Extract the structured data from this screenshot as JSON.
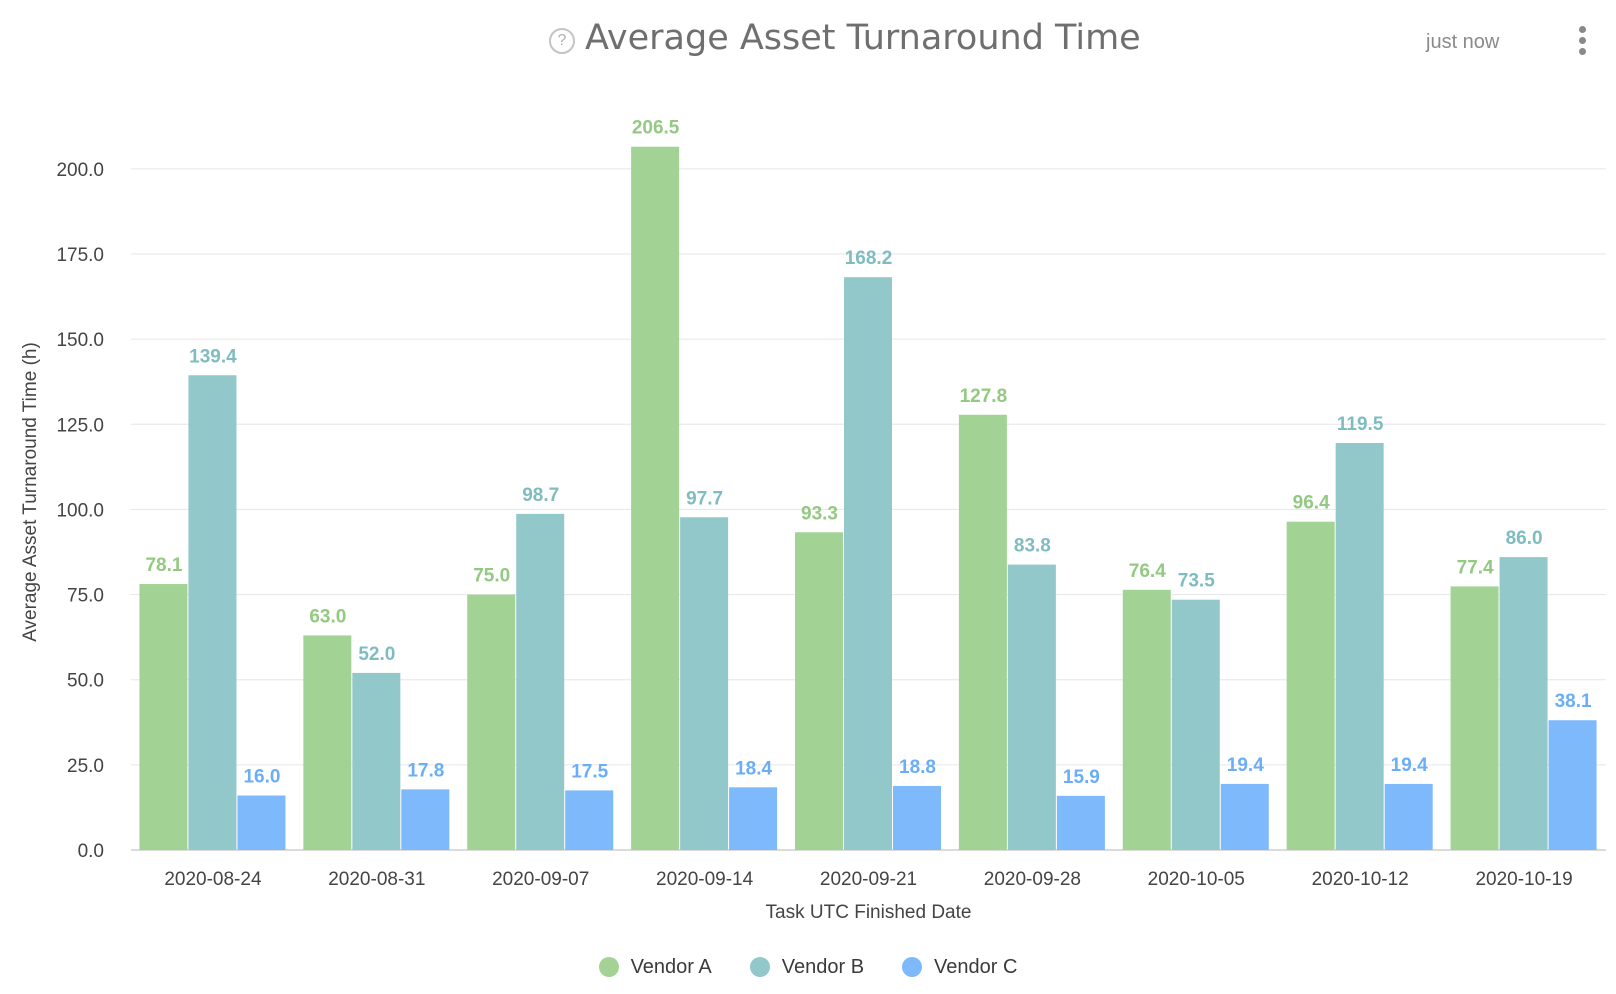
{
  "header": {
    "title": "Average Asset Turnaround Time",
    "help_icon": "?",
    "updated": "just now",
    "menu_icon": "more-vertical-icon"
  },
  "colors": {
    "grid": "#e6e6e6",
    "axis_text": "#444444",
    "axis_title": "#444444"
  },
  "chart_data": {
    "type": "bar",
    "title": "Average Asset Turnaround Time",
    "xlabel": "Task UTC Finished Date",
    "ylabel": "Average Asset Turnaround Time (h)",
    "ylim": [
      0,
      212
    ],
    "yticks": [
      0,
      25,
      50,
      75,
      100,
      125,
      150,
      175,
      200
    ],
    "ytick_labels": [
      "0.0",
      "25.0",
      "50.0",
      "75.0",
      "100.0",
      "125.0",
      "150.0",
      "175.0",
      "200.0"
    ],
    "grid": true,
    "legend_position": "bottom-center",
    "categories": [
      "2020-08-24",
      "2020-08-31",
      "2020-09-07",
      "2020-09-14",
      "2020-09-21",
      "2020-09-28",
      "2020-10-05",
      "2020-10-12",
      "2020-10-19"
    ],
    "series": [
      {
        "name": "Vendor A",
        "color": "#a3d394",
        "label_color": "#93c982",
        "values": [
          78.1,
          63.0,
          75.0,
          206.5,
          93.3,
          127.8,
          76.4,
          96.4,
          77.4
        ],
        "labels": [
          "78.1",
          "63.0",
          "75.0",
          "206.5",
          "93.3",
          "127.8",
          "76.4",
          "96.4",
          "77.4"
        ]
      },
      {
        "name": "Vendor B",
        "color": "#92c8ca",
        "label_color": "#7fbcc0",
        "values": [
          139.4,
          52.0,
          98.7,
          97.7,
          168.2,
          83.8,
          73.5,
          119.5,
          86.0
        ],
        "labels": [
          "139.4",
          "52.0",
          "98.7",
          "97.7",
          "168.2",
          "83.8",
          "73.5",
          "119.5",
          "86.0"
        ]
      },
      {
        "name": "Vendor C",
        "color": "#7eb9fb",
        "label_color": "#6aaef8",
        "values": [
          16.0,
          17.8,
          17.5,
          18.4,
          18.8,
          15.9,
          19.4,
          19.4,
          38.1
        ],
        "labels": [
          "16.0",
          "17.8",
          "17.5",
          "18.4",
          "18.8",
          "15.9",
          "19.4",
          "19.4",
          "38.1"
        ]
      }
    ]
  }
}
